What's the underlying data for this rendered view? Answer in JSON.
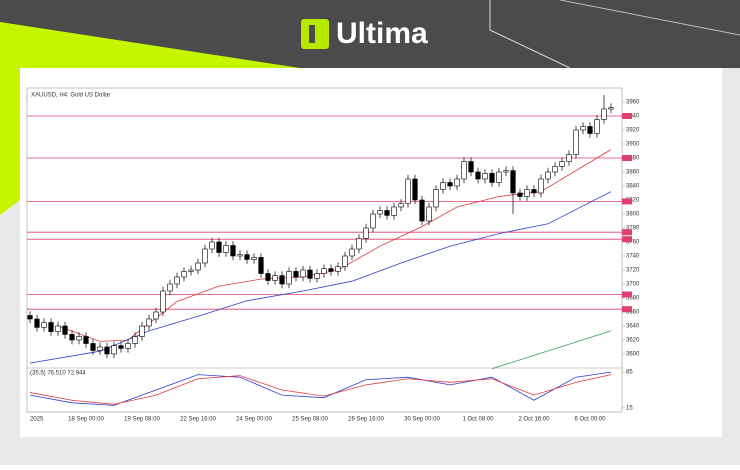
{
  "brand": "Ultima",
  "chart_data": [
    {
      "type": "candlestick",
      "title": "XAUUSD, H4: Gold US Dollar",
      "categories": [
        "2025",
        null,
        null,
        null,
        null,
        null,
        null,
        null,
        "18 Sep 00:00",
        null,
        null,
        null,
        null,
        null,
        null,
        null,
        "19 Sep 08:00",
        null,
        null,
        null,
        null,
        null,
        null,
        null,
        "22 Sep 16:00",
        null,
        null,
        null,
        null,
        null,
        null,
        null,
        "24 Sep 00:00",
        null,
        null,
        null,
        null,
        null,
        null,
        null,
        "25 Sep 08:00",
        null,
        null,
        null,
        null,
        null,
        null,
        null,
        "26 Sep 16:00",
        null,
        null,
        null,
        null,
        null,
        null,
        null,
        "30 Sep 00:00",
        null,
        null,
        null,
        null,
        null,
        null,
        null,
        "1 Oct 08:00",
        null,
        null,
        null,
        null,
        null,
        null,
        null,
        "2 Oct 16:00",
        null,
        null,
        null,
        null,
        null,
        null,
        null,
        "6 Oct 00:00",
        null,
        null,
        null
      ],
      "open": [
        3655,
        3650,
        3638,
        3645,
        3632,
        3640,
        3628,
        3620,
        3625,
        3615,
        3605,
        3610,
        3600,
        3612,
        3608,
        3615,
        3625,
        3640,
        3650,
        3660,
        3690,
        3700,
        3710,
        3718,
        3720,
        3730,
        3750,
        3760,
        3745,
        3755,
        3740,
        3742,
        3735,
        3738,
        3715,
        3705,
        3712,
        3700,
        3718,
        3710,
        3720,
        3708,
        3715,
        3722,
        3718,
        3725,
        3740,
        3750,
        3765,
        3780,
        3800,
        3805,
        3798,
        3810,
        3815,
        3850,
        3820,
        3790,
        3810,
        3835,
        3845,
        3840,
        3850,
        3875,
        3860,
        3850,
        3858,
        3845,
        3860,
        3862,
        3830,
        3825,
        3835,
        3830,
        3850,
        3860,
        3868,
        3875,
        3885,
        3920,
        3925,
        3915,
        3935,
        3950
      ],
      "high": [
        3661,
        3656,
        3651,
        3651,
        3646,
        3646,
        3634,
        3631,
        3631,
        3621,
        3616,
        3616,
        3618,
        3618,
        3621,
        3631,
        3646,
        3656,
        3666,
        3696,
        3706,
        3716,
        3724,
        3726,
        3736,
        3756,
        3766,
        3766,
        3761,
        3761,
        3748,
        3748,
        3744,
        3744,
        3721,
        3718,
        3718,
        3724,
        3724,
        3726,
        3726,
        3721,
        3728,
        3728,
        3731,
        3746,
        3756,
        3771,
        3786,
        3806,
        3811,
        3811,
        3816,
        3821,
        3856,
        3856,
        3826,
        3816,
        3841,
        3851,
        3851,
        3856,
        3881,
        3881,
        3866,
        3864,
        3864,
        3866,
        3868,
        3868,
        3836,
        3841,
        3841,
        3856,
        3866,
        3874,
        3881,
        3891,
        3926,
        3931,
        3931,
        3941,
        3970,
        3958
      ],
      "low": [
        3644,
        3632,
        3632,
        3626,
        3626,
        3622,
        3614,
        3614,
        3609,
        3599,
        3599,
        3594,
        3594,
        3602,
        3602,
        3609,
        3619,
        3634,
        3644,
        3654,
        3684,
        3694,
        3704,
        3712,
        3714,
        3724,
        3744,
        3739,
        3739,
        3734,
        3734,
        3729,
        3729,
        3709,
        3699,
        3699,
        3694,
        3694,
        3704,
        3704,
        3702,
        3702,
        3709,
        3712,
        3712,
        3719,
        3734,
        3744,
        3759,
        3774,
        3794,
        3792,
        3792,
        3804,
        3809,
        3814,
        3784,
        3784,
        3804,
        3829,
        3834,
        3834,
        3844,
        3854,
        3844,
        3844,
        3839,
        3839,
        3854,
        3800,
        3819,
        3819,
        3824,
        3824,
        3844,
        3854,
        3862,
        3869,
        3879,
        3914,
        3909,
        3909,
        3929,
        3944
      ],
      "close": [
        3650,
        3638,
        3645,
        3632,
        3640,
        3628,
        3620,
        3625,
        3615,
        3605,
        3610,
        3600,
        3612,
        3608,
        3615,
        3625,
        3640,
        3650,
        3660,
        3690,
        3700,
        3710,
        3718,
        3720,
        3730,
        3750,
        3760,
        3745,
        3755,
        3740,
        3742,
        3735,
        3738,
        3715,
        3705,
        3712,
        3700,
        3718,
        3710,
        3720,
        3708,
        3715,
        3722,
        3718,
        3725,
        3740,
        3750,
        3765,
        3780,
        3800,
        3805,
        3798,
        3810,
        3815,
        3850,
        3820,
        3790,
        3810,
        3835,
        3845,
        3840,
        3850,
        3875,
        3860,
        3850,
        3858,
        3845,
        3860,
        3862,
        3830,
        3825,
        3835,
        3830,
        3850,
        3860,
        3868,
        3875,
        3885,
        3920,
        3925,
        3915,
        3935,
        3950,
        3952
      ],
      "ylim": [
        3580,
        3980
      ],
      "yticks": [
        3600,
        3620,
        3640,
        3660,
        3680,
        3700,
        3720,
        3740,
        3760,
        3780,
        3800,
        3820,
        3840,
        3860,
        3880,
        3900,
        3920,
        3940,
        3960
      ],
      "levels": {
        "color": "#e0406e",
        "values": [
          3940,
          3880,
          3818,
          3774,
          3764,
          3685,
          3664
        ]
      },
      "lines": [
        {
          "color": "#e23b3b",
          "x": [
            4,
            10,
            14,
            21,
            27,
            33,
            39,
            44,
            50,
            56,
            61,
            67,
            73,
            79,
            83
          ],
          "values": [
            3640,
            3618,
            3620,
            3675,
            3697,
            3707,
            3710,
            3720,
            3754,
            3782,
            3810,
            3825,
            3832,
            3868,
            3892
          ]
        },
        {
          "color": "#2f3fd0",
          "x": [
            0,
            10,
            17,
            24,
            31,
            39,
            46,
            53,
            60,
            67,
            74,
            83
          ],
          "values": [
            3587,
            3604,
            3633,
            3654,
            3676,
            3690,
            3704,
            3730,
            3754,
            3772,
            3786,
            3832
          ]
        },
        {
          "color": "#2e9a55",
          "x": [
            66,
            83
          ],
          "values": [
            3579,
            3633
          ]
        }
      ]
    },
    {
      "type": "line",
      "title": "(35,5) 76.510 72.944",
      "ylim": [
        7,
        93
      ],
      "yticks": [
        15,
        85
      ],
      "series": [
        {
          "color": "#2f3fd0",
          "x": [
            0,
            6,
            12,
            18,
            24,
            30,
            36,
            42,
            48,
            54,
            60,
            66,
            72,
            78,
            83
          ],
          "values": [
            40,
            25,
            20,
            50,
            80,
            75,
            40,
            35,
            70,
            75,
            60,
            75,
            30,
            75,
            85
          ]
        },
        {
          "color": "#e23b3b",
          "x": [
            0,
            6,
            12,
            18,
            24,
            30,
            36,
            42,
            48,
            54,
            60,
            66,
            72,
            78,
            83
          ],
          "values": [
            45,
            30,
            22,
            40,
            72,
            78,
            50,
            38,
            60,
            72,
            65,
            72,
            40,
            65,
            80
          ]
        }
      ]
    }
  ]
}
